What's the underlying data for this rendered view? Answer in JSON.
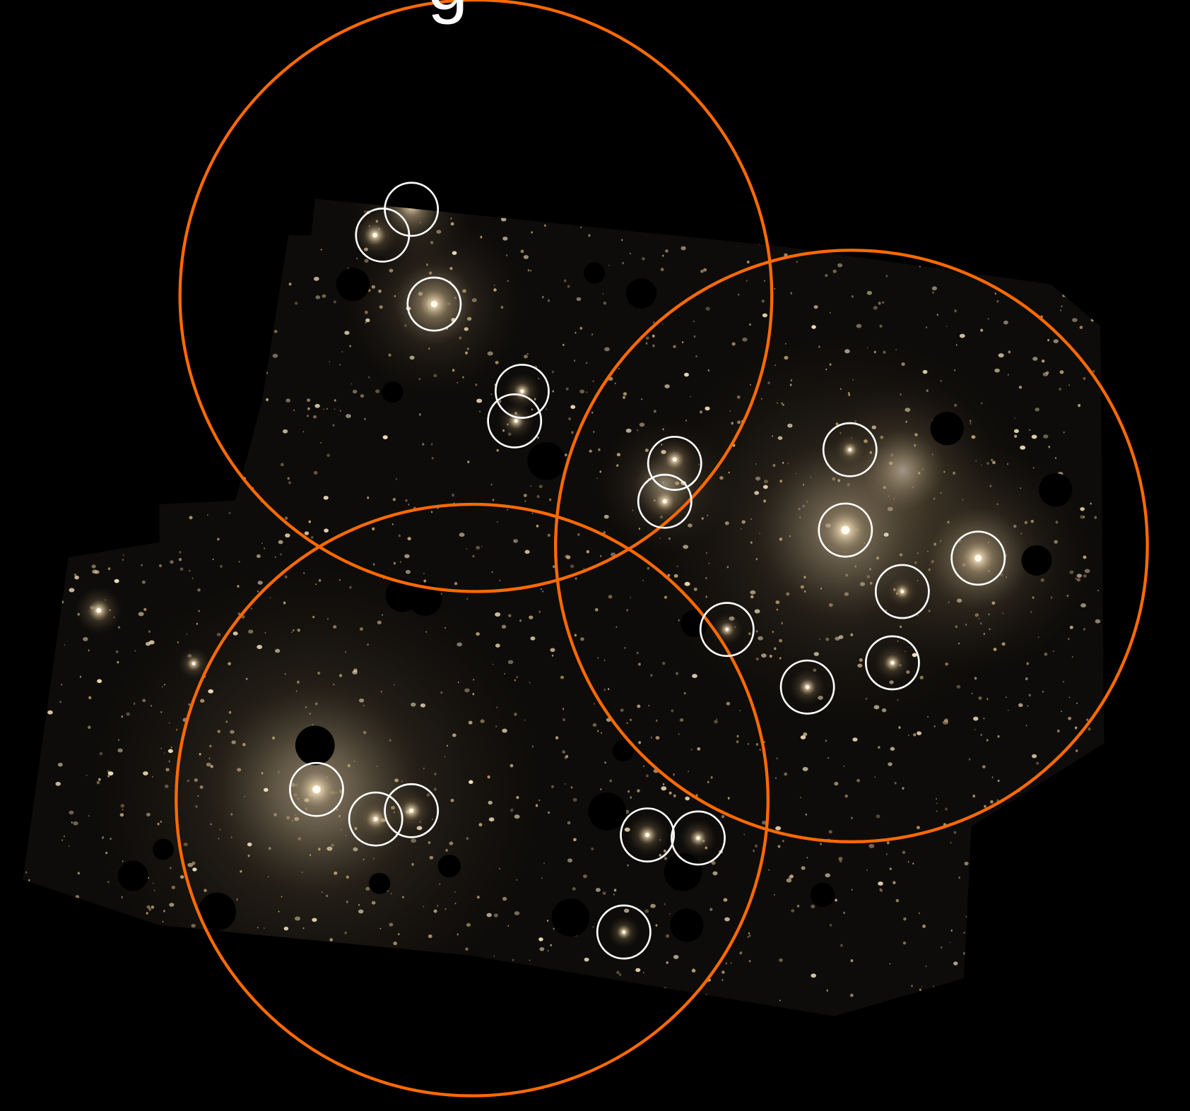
{
  "image": {
    "caption": "g"
  }
}
